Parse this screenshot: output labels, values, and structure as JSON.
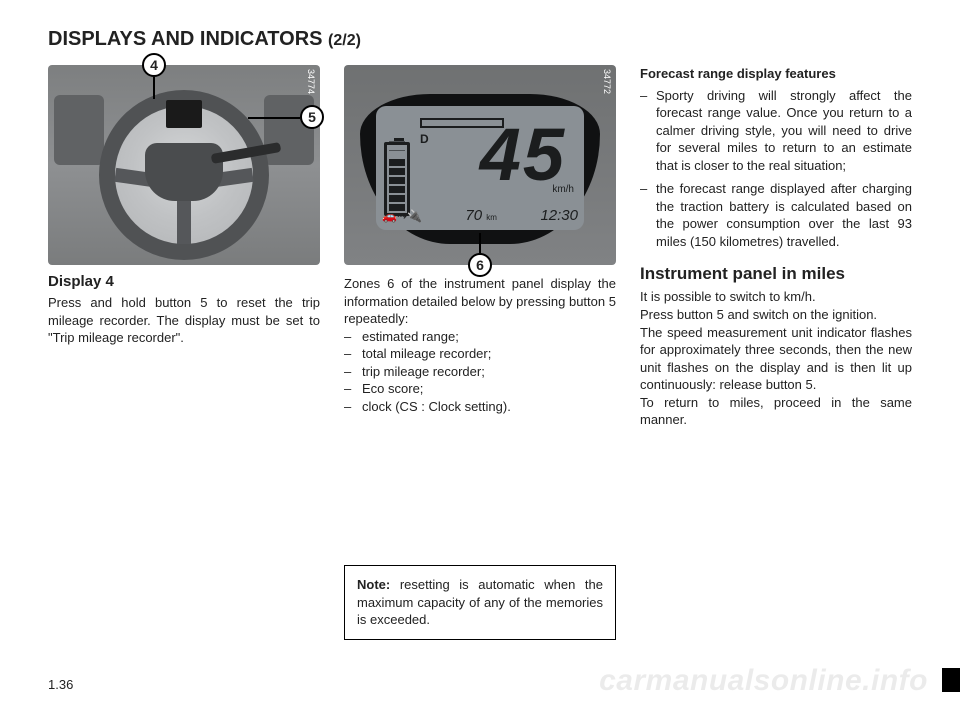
{
  "header": {
    "title_main": "DISPLAYS AND INDICATORS ",
    "title_sub": "(2/2)"
  },
  "col1": {
    "fig_code": "34774",
    "callout_4": "4",
    "callout_5": "5",
    "heading": "Display 4",
    "body": "Press and hold button 5 to reset the trip mileage recorder. The display must be set to \"Trip mileage recorder\"."
  },
  "col2": {
    "fig_code": "34772",
    "callout_6": "6",
    "lcd": {
      "speed": "45",
      "unit": "km/h",
      "mode": "D",
      "trip": "70",
      "trip_unit": "km",
      "clock": "12:30",
      "battery_bars_filled": 6,
      "battery_bars_total": 8
    },
    "intro": "Zones 6 of the instrument panel display the information detailed below by pressing button 5 repeatedly:",
    "items": [
      "estimated range;",
      "total mileage recorder;",
      "trip mileage recorder;",
      "Eco score;",
      "clock (CS : Clock setting)."
    ],
    "note_label": "Note:",
    "note_body": " resetting is automatic when the maximum capacity of any of the memories is exceeded."
  },
  "col3": {
    "feat_heading": "Forecast range display features",
    "feat_items": [
      "Sporty driving will strongly affect the forecast range value. Once you return to a calmer driving style, you will need to drive for several miles to return to an estimate that is closer to the real situation;",
      "the forecast range displayed after charging the traction battery is calculated based on the power consumption over the last 93 miles (150 kilometres) travelled."
    ],
    "miles_heading": "Instrument panel in miles",
    "miles_p1": "It is possible to switch to km/h.",
    "miles_p2": "Press button 5 and switch on the ignition.",
    "miles_p3": "The speed measurement unit indicator flashes for approximately three seconds, then the new unit flashes on the display and is then lit up continuously: release button 5.",
    "miles_p4": "To return to miles, proceed in the same manner."
  },
  "footer": {
    "page": "1.36",
    "watermark": "carmanualsonline.info"
  }
}
